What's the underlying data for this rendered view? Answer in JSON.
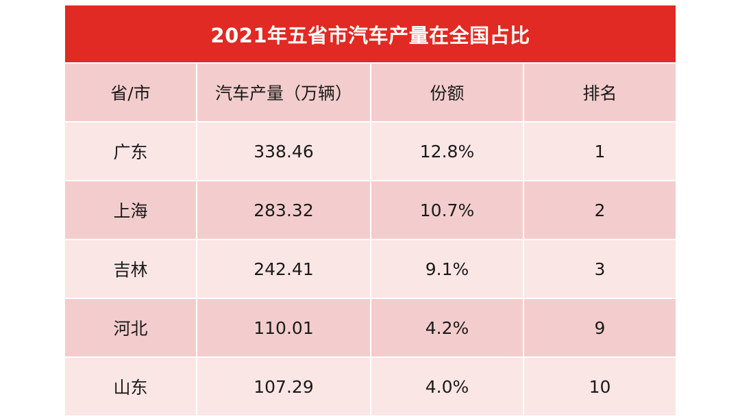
{
  "title": "2021年五省市汽车产量在全国占比",
  "columns": [
    "省/市",
    "汽车产量（万辆）",
    "份额",
    "排名"
  ],
  "rows": [
    [
      "广东",
      "338.46",
      "12.8%",
      "1"
    ],
    [
      "上海",
      "283.32",
      "10.7%",
      "2"
    ],
    [
      "吉林",
      "242.41",
      "9.1%",
      "3"
    ],
    [
      "河北",
      "110.01",
      "4.2%",
      "9"
    ],
    [
      "山东",
      "107.29",
      "4.0%",
      "10"
    ]
  ],
  "colors": {
    "title_background": "#e02a23",
    "header_background": "#f3cdcd",
    "row_light": "#fae6e5",
    "row_dark": "#f3cdcd"
  }
}
